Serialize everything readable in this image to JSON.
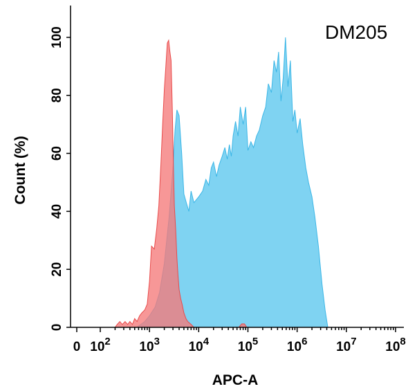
{
  "chart_data": {
    "type": "area",
    "annotation": "DM205",
    "xlabel": "APC-A",
    "ylabel": "Count  (%)",
    "x_scale": "log",
    "xlim": [
      0,
      100000000
    ],
    "ylim": [
      0,
      105
    ],
    "y_ticks": [
      0,
      20,
      40,
      60,
      80,
      100
    ],
    "x_ticks": [
      {
        "value": 0,
        "base": "0",
        "exp": ""
      },
      {
        "value": 100,
        "base": "10",
        "exp": "2"
      },
      {
        "value": 1000,
        "base": "10",
        "exp": "3"
      },
      {
        "value": 10000,
        "base": "10",
        "exp": "4"
      },
      {
        "value": 100000,
        "base": "10",
        "exp": "5"
      },
      {
        "value": 1000000,
        "base": "10",
        "exp": "6"
      },
      {
        "value": 10000000,
        "base": "10",
        "exp": "7"
      },
      {
        "value": 100000000,
        "base": "10",
        "exp": "8"
      }
    ],
    "grid": false,
    "legend": "none",
    "series": [
      {
        "color": "#7fd3f2",
        "stroke": "#3bb6e6",
        "x": [
          550,
          800,
          1000,
          1300,
          1600,
          2000,
          2500,
          3000,
          3300,
          3600,
          4000,
          4500,
          5000,
          5600,
          6300,
          7000,
          8000,
          10000,
          12000,
          14000,
          16000,
          18000,
          20000,
          23000,
          26000,
          30000,
          34000,
          38000,
          42000,
          46000,
          50000,
          56000,
          63000,
          70000,
          80000,
          90000,
          100000,
          115000,
          130000,
          150000,
          170000,
          200000,
          230000,
          260000,
          300000,
          340000,
          380000,
          420000,
          470000,
          520000,
          580000,
          650000,
          730000,
          820000,
          900000,
          1000000,
          1150000,
          1300000,
          1500000,
          1700000,
          2000000,
          2300000,
          2700000,
          3200000,
          3700000,
          4200000
        ],
        "y": [
          0,
          2,
          4,
          7,
          12,
          22,
          38,
          55,
          68,
          75,
          73,
          60,
          46,
          43,
          40,
          47,
          43,
          45,
          47,
          51,
          49,
          55,
          57,
          52,
          56,
          59,
          62,
          58,
          63,
          59,
          66,
          71,
          66,
          76,
          70,
          76,
          61,
          64,
          62,
          66,
          68,
          73,
          76,
          84,
          81,
          92,
          88,
          95,
          78,
          86,
          100,
          83,
          92,
          71,
          75,
          67,
          72,
          63,
          55,
          50,
          45,
          38,
          28,
          15,
          6,
          0
        ]
      },
      {
        "color": "#f57a7a",
        "stroke": "#e84a4a",
        "x": [
          200,
          220,
          250,
          280,
          320,
          360,
          400,
          450,
          500,
          560,
          630,
          700,
          800,
          900,
          1000,
          1100,
          1250,
          1400,
          1550,
          1700,
          1850,
          2000,
          2150,
          2300,
          2450,
          2600,
          2750,
          2900,
          3050,
          3200,
          3400,
          3600,
          3800,
          4000,
          4300,
          4600,
          5000,
          5500,
          6000,
          7000,
          8000
        ],
        "y": [
          0,
          1,
          2,
          1,
          2,
          1,
          2,
          1,
          3,
          2,
          4,
          5,
          6,
          8,
          16,
          28,
          27,
          34,
          42,
          56,
          70,
          82,
          90,
          98,
          99,
          95,
          92,
          76,
          58,
          42,
          34,
          24,
          18,
          13,
          10,
          8,
          5,
          3,
          2,
          1,
          0
        ]
      },
      {
        "color": "#f57a7a",
        "stroke": "#e84a4a",
        "x": [
          65000,
          75000,
          85000,
          95000
        ],
        "y": [
          0,
          1.2,
          1.2,
          0
        ]
      }
    ]
  }
}
